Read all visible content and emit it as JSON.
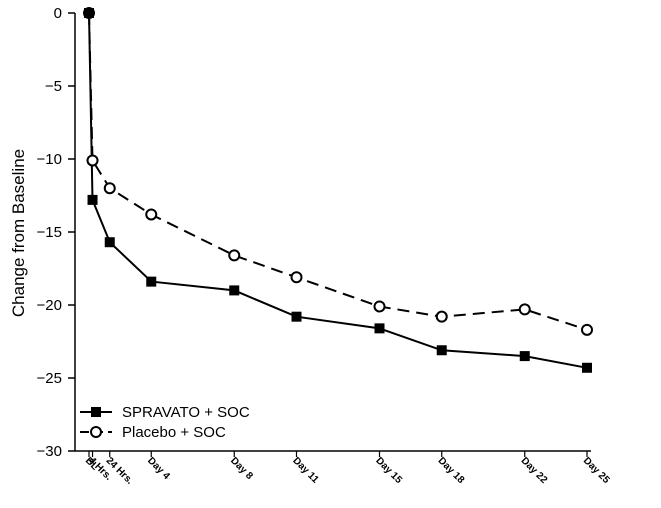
{
  "chart_data": {
    "type": "line",
    "ylabel": "Change from Baseline",
    "xlabel": "",
    "ylim": [
      -30,
      0
    ],
    "yticks": [
      0,
      -5,
      -10,
      -15,
      -20,
      -25,
      -30
    ],
    "ytick_labels": [
      "0",
      "−5",
      "−10",
      "−15",
      "−20",
      "−25",
      "−30"
    ],
    "categories": [
      "BL",
      "4 Hrs.",
      "24 Hrs.",
      "Day 4",
      "Day 8",
      "Day 11",
      "Day 15",
      "Day 18",
      "Day 22",
      "Day 25"
    ],
    "x_days": [
      0,
      0.17,
      1,
      3,
      7,
      10,
      14,
      17,
      21,
      24
    ],
    "legend_position": "bottom-left",
    "grid": false,
    "series": [
      {
        "name": "SPRAVATO + SOC",
        "marker": "filled-square",
        "line": "solid",
        "values": [
          0,
          -12.8,
          -15.7,
          -18.4,
          -19.0,
          -20.8,
          -21.6,
          -23.1,
          -23.5,
          -24.3
        ]
      },
      {
        "name": "Placebo + SOC",
        "marker": "open-circle",
        "line": "dashed",
        "values": [
          0,
          -10.1,
          -12.0,
          -13.8,
          -16.6,
          -18.1,
          -20.1,
          -20.8,
          -20.3,
          -21.7
        ]
      }
    ]
  }
}
